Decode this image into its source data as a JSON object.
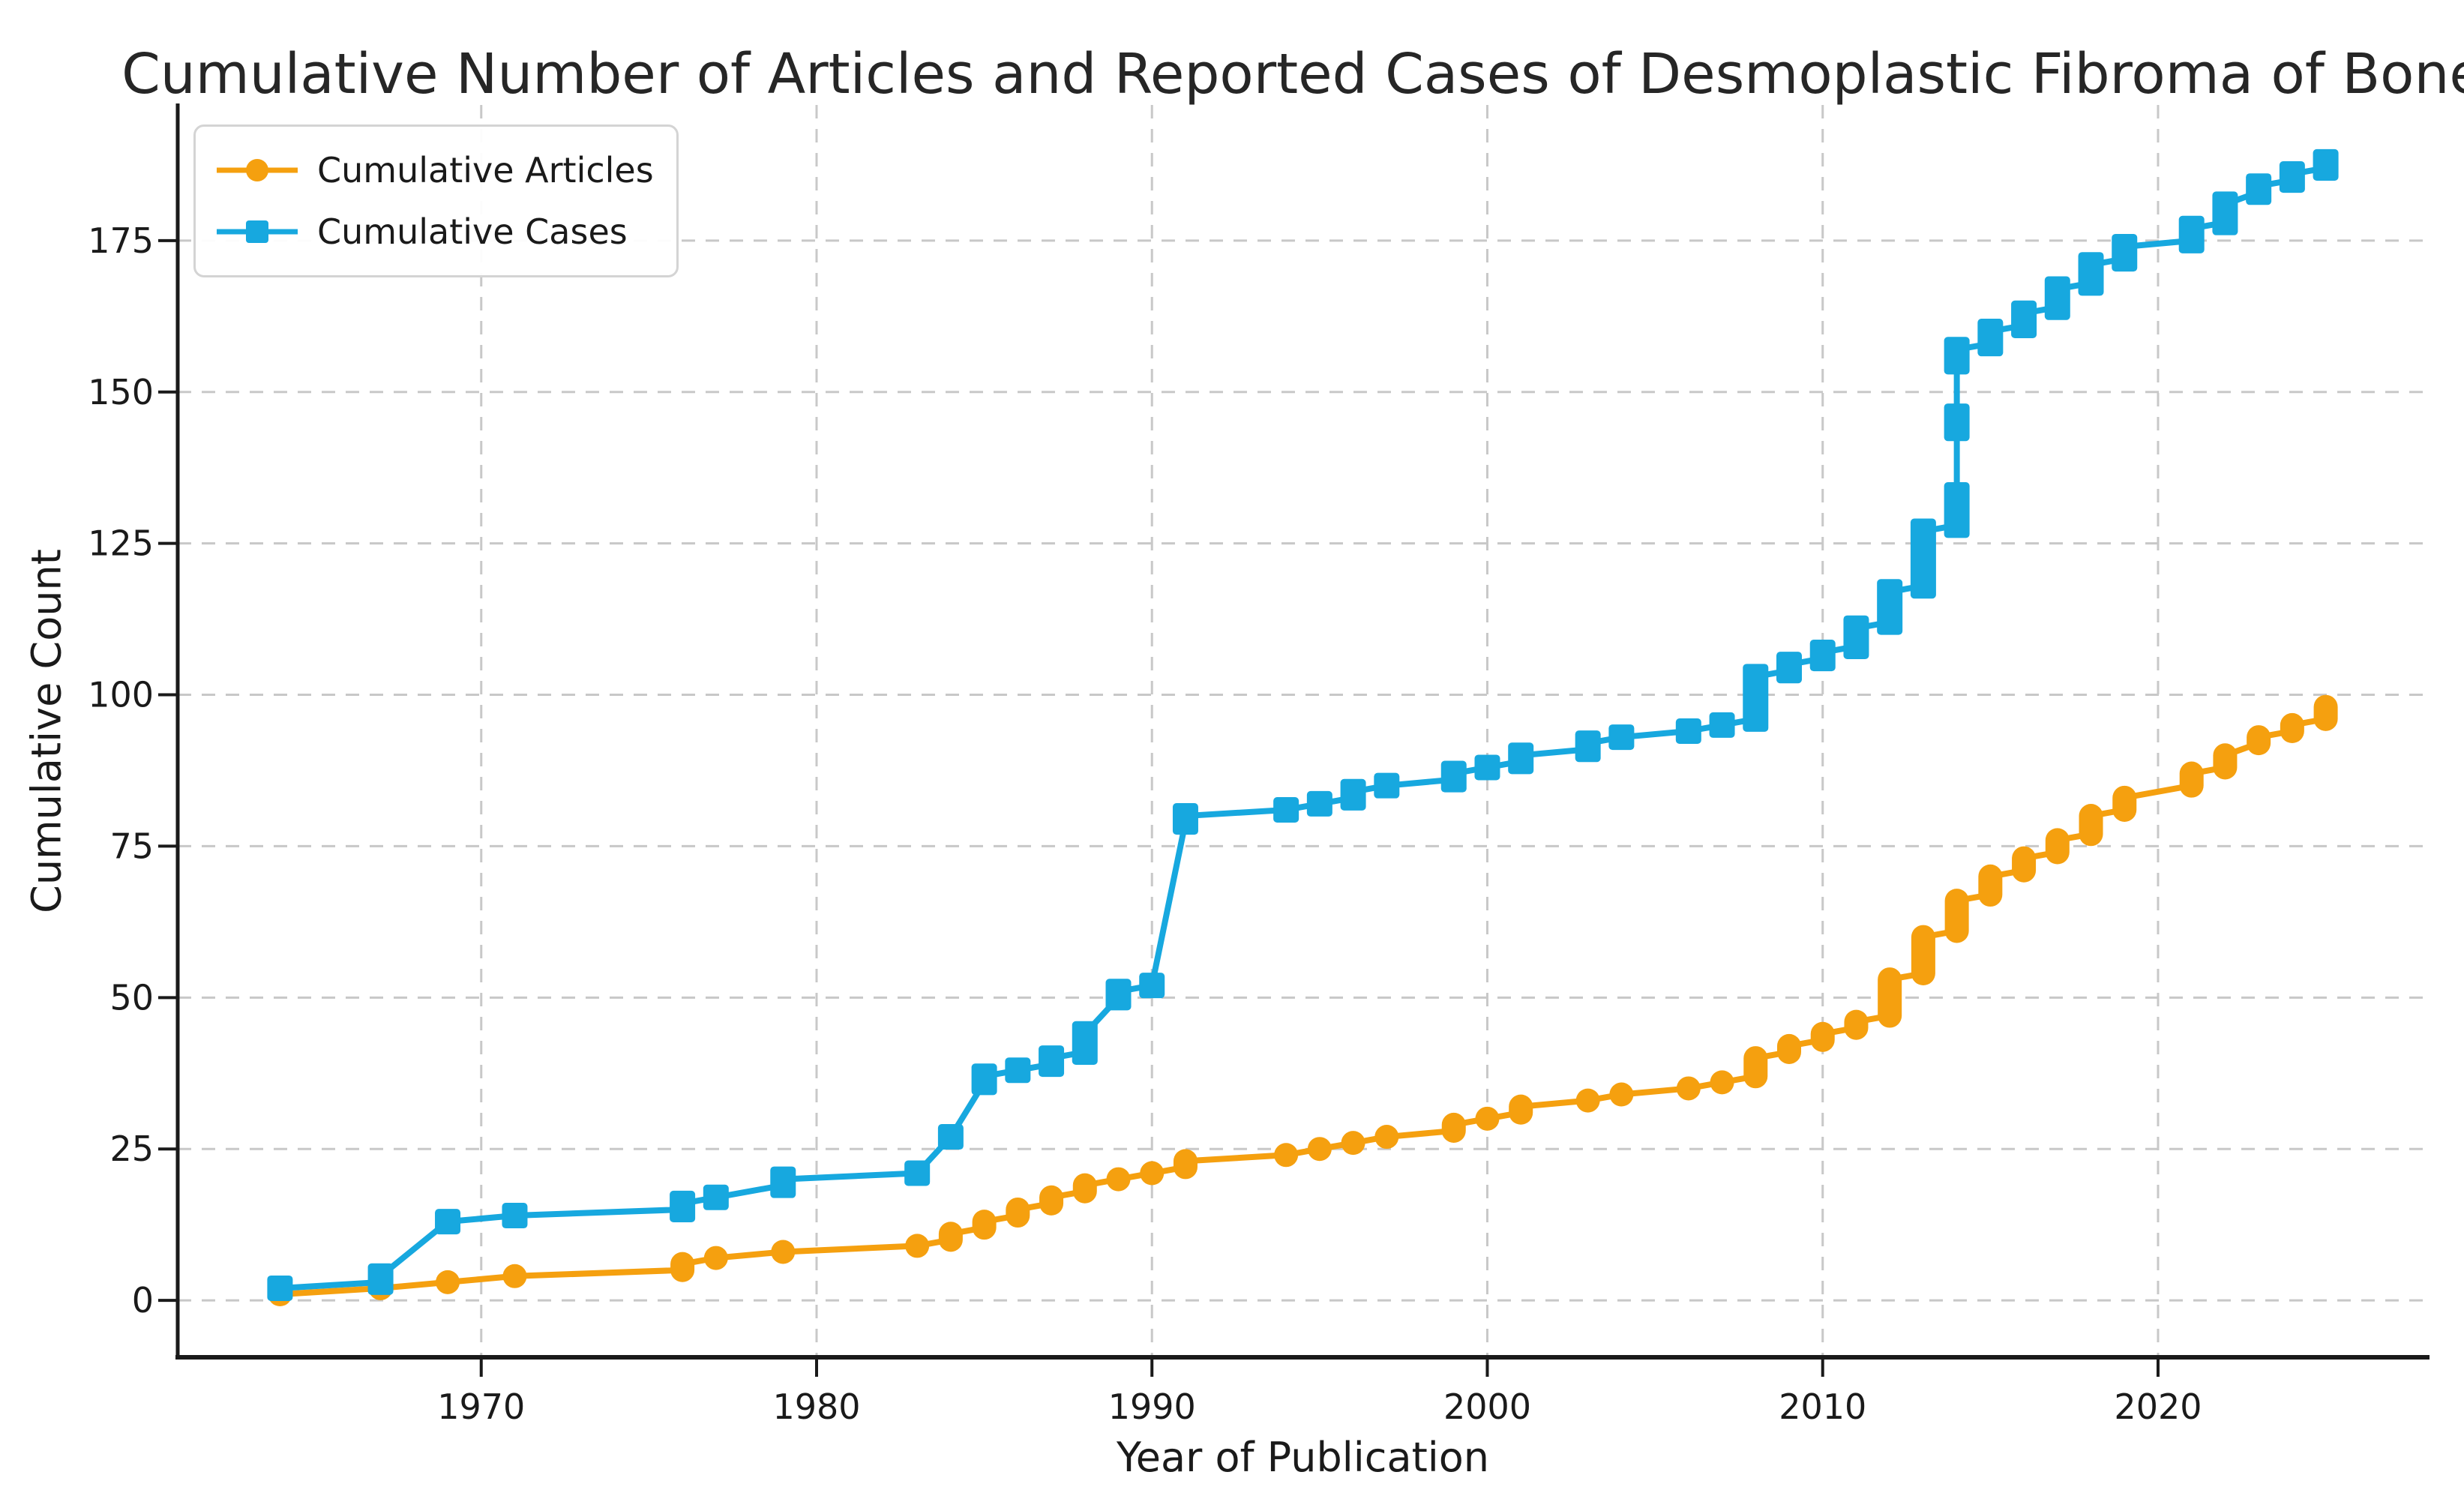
{
  "title": "Cumulative Number of Articles and Reported Cases of Desmoplastic Fibroma of Bone",
  "colors": {
    "articles": "#F5A00F",
    "cases": "#17A8DF",
    "grid": "#c8c8c8",
    "spine": "#1a1a1a",
    "text": "#1a1a1a",
    "background": "#ffffff",
    "legend_border": "#d4d4d4"
  },
  "chart_data": {
    "type": "line",
    "title": "Cumulative Number of Articles and Reported Cases of Desmoplastic Fibroma of Bone",
    "xlabel": "Year of Publication",
    "ylabel": "Cumulative Count",
    "grid": true,
    "grid_style": "dashed",
    "legend_position": "upper left",
    "x_ticks": [
      1970,
      1980,
      1990,
      2000,
      2010,
      2020
    ],
    "y_ticks": [
      0,
      25,
      50,
      75,
      100,
      125,
      150,
      175
    ],
    "xlim": [
      1960.95,
      2028.05
    ],
    "ylim": [
      -9.4,
      197.4
    ],
    "series": [
      {
        "name": "Cumulative Articles",
        "marker": "circle",
        "color_key": "articles",
        "points": [
          {
            "year": 1964,
            "value": 1
          },
          {
            "year": 1967,
            "value": 2
          },
          {
            "year": 1969,
            "value": 3
          },
          {
            "year": 1971,
            "value": 4
          },
          {
            "year": 1976,
            "value": 6,
            "spans": [
              [
                5,
                6
              ]
            ]
          },
          {
            "year": 1977,
            "value": 7
          },
          {
            "year": 1979,
            "value": 8
          },
          {
            "year": 1983,
            "value": 9
          },
          {
            "year": 1984,
            "value": 11,
            "spans": [
              [
                10,
                11
              ]
            ]
          },
          {
            "year": 1985,
            "value": 13,
            "spans": [
              [
                12,
                13
              ]
            ]
          },
          {
            "year": 1986,
            "value": 15,
            "spans": [
              [
                14,
                15
              ]
            ]
          },
          {
            "year": 1987,
            "value": 17,
            "spans": [
              [
                16,
                17
              ]
            ]
          },
          {
            "year": 1988,
            "value": 19,
            "spans": [
              [
                18,
                19
              ]
            ]
          },
          {
            "year": 1989,
            "value": 20
          },
          {
            "year": 1990,
            "value": 21
          },
          {
            "year": 1991,
            "value": 23,
            "spans": [
              [
                22,
                23
              ]
            ]
          },
          {
            "year": 1994,
            "value": 24
          },
          {
            "year": 1995,
            "value": 25
          },
          {
            "year": 1996,
            "value": 26
          },
          {
            "year": 1997,
            "value": 27
          },
          {
            "year": 1999,
            "value": 29,
            "spans": [
              [
                28,
                29
              ]
            ]
          },
          {
            "year": 2000,
            "value": 30
          },
          {
            "year": 2001,
            "value": 32,
            "spans": [
              [
                31,
                32
              ]
            ]
          },
          {
            "year": 2003,
            "value": 33
          },
          {
            "year": 2004,
            "value": 34
          },
          {
            "year": 2006,
            "value": 35
          },
          {
            "year": 2007,
            "value": 36
          },
          {
            "year": 2008,
            "value": 40,
            "spans": [
              [
                37,
                40
              ]
            ]
          },
          {
            "year": 2009,
            "value": 42,
            "spans": [
              [
                41,
                42
              ]
            ]
          },
          {
            "year": 2010,
            "value": 44,
            "spans": [
              [
                43,
                44
              ]
            ]
          },
          {
            "year": 2011,
            "value": 46,
            "spans": [
              [
                45,
                46
              ]
            ]
          },
          {
            "year": 2012,
            "value": 53,
            "spans": [
              [
                47,
                53
              ]
            ]
          },
          {
            "year": 2013,
            "value": 60,
            "spans": [
              [
                54,
                60
              ]
            ]
          },
          {
            "year": 2014,
            "value": 66,
            "spans": [
              [
                61,
                66
              ]
            ]
          },
          {
            "year": 2015,
            "value": 70,
            "spans": [
              [
                67,
                70
              ]
            ]
          },
          {
            "year": 2016,
            "value": 73,
            "spans": [
              [
                71,
                73
              ]
            ]
          },
          {
            "year": 2017,
            "value": 76,
            "spans": [
              [
                74,
                76
              ]
            ]
          },
          {
            "year": 2018,
            "value": 80,
            "spans": [
              [
                77,
                80
              ]
            ]
          },
          {
            "year": 2019,
            "value": 83,
            "spans": [
              [
                81,
                83
              ]
            ]
          },
          {
            "year": 2021,
            "value": 87,
            "spans": [
              [
                85,
                87
              ]
            ]
          },
          {
            "year": 2022,
            "value": 90,
            "spans": [
              [
                88,
                90
              ]
            ]
          },
          {
            "year": 2023,
            "value": 93,
            "spans": [
              [
                92,
                93
              ]
            ]
          },
          {
            "year": 2024,
            "value": 95,
            "spans": [
              [
                94,
                95
              ]
            ]
          },
          {
            "year": 2025,
            "value": 98,
            "spans": [
              [
                96,
                98
              ]
            ]
          }
        ]
      },
      {
        "name": "Cumulative Cases",
        "marker": "square",
        "color_key": "cases",
        "points": [
          {
            "year": 1964,
            "value": 2
          },
          {
            "year": 1967,
            "value": 4,
            "spans": [
              [
                3,
                4
              ]
            ]
          },
          {
            "year": 1969,
            "value": 13
          },
          {
            "year": 1971,
            "value": 14
          },
          {
            "year": 1976,
            "value": 16,
            "spans": [
              [
                15,
                16
              ]
            ]
          },
          {
            "year": 1977,
            "value": 17
          },
          {
            "year": 1979,
            "value": 20,
            "spans": [
              [
                19,
                20
              ]
            ]
          },
          {
            "year": 1983,
            "value": 21
          },
          {
            "year": 1984,
            "value": 27
          },
          {
            "year": 1985,
            "value": 37,
            "spans": [
              [
                36,
                37
              ]
            ]
          },
          {
            "year": 1986,
            "value": 38
          },
          {
            "year": 1987,
            "value": 40,
            "spans": [
              [
                39,
                40
              ]
            ]
          },
          {
            "year": 1988,
            "value": 44,
            "spans": [
              [
                41,
                44
              ]
            ]
          },
          {
            "year": 1989,
            "value": 51,
            "spans": [
              [
                50,
                51
              ]
            ]
          },
          {
            "year": 1990,
            "value": 52
          },
          {
            "year": 1991,
            "value": 80,
            "spans": [
              [
                79,
                80
              ]
            ]
          },
          {
            "year": 1994,
            "value": 81
          },
          {
            "year": 1995,
            "value": 82
          },
          {
            "year": 1996,
            "value": 84,
            "spans": [
              [
                83,
                84
              ]
            ]
          },
          {
            "year": 1997,
            "value": 85
          },
          {
            "year": 1999,
            "value": 87,
            "spans": [
              [
                86,
                87
              ]
            ]
          },
          {
            "year": 2000,
            "value": 88
          },
          {
            "year": 2001,
            "value": 90,
            "spans": [
              [
                89,
                90
              ]
            ]
          },
          {
            "year": 2003,
            "value": 92,
            "spans": [
              [
                91,
                92
              ]
            ]
          },
          {
            "year": 2004,
            "value": 93
          },
          {
            "year": 2006,
            "value": 94
          },
          {
            "year": 2007,
            "value": 95
          },
          {
            "year": 2008,
            "value": 103,
            "spans": [
              [
                96,
                103
              ]
            ]
          },
          {
            "year": 2009,
            "value": 105,
            "spans": [
              [
                104,
                105
              ]
            ]
          },
          {
            "year": 2010,
            "value": 107,
            "spans": [
              [
                106,
                107
              ]
            ]
          },
          {
            "year": 2011,
            "value": 111,
            "spans": [
              [
                108,
                111
              ]
            ]
          },
          {
            "year": 2012,
            "value": 117,
            "spans": [
              [
                112,
                117
              ]
            ]
          },
          {
            "year": 2013,
            "value": 127,
            "spans": [
              [
                118,
                127
              ]
            ]
          },
          {
            "year": 2014,
            "value": 157,
            "spans": [
              [
                128,
                133
              ],
              [
                144,
                146
              ],
              [
                155,
                157
              ]
            ]
          },
          {
            "year": 2015,
            "value": 160,
            "spans": [
              [
                158,
                160
              ]
            ]
          },
          {
            "year": 2016,
            "value": 163,
            "spans": [
              [
                161,
                163
              ]
            ]
          },
          {
            "year": 2017,
            "value": 167,
            "spans": [
              [
                164,
                167
              ]
            ]
          },
          {
            "year": 2018,
            "value": 171,
            "spans": [
              [
                168,
                171
              ]
            ]
          },
          {
            "year": 2019,
            "value": 174,
            "spans": [
              [
                172,
                174
              ]
            ]
          },
          {
            "year": 2021,
            "value": 177,
            "spans": [
              [
                175,
                177
              ]
            ]
          },
          {
            "year": 2022,
            "value": 181,
            "spans": [
              [
                178,
                181
              ]
            ]
          },
          {
            "year": 2023,
            "value": 184,
            "spans": [
              [
                183,
                184
              ]
            ]
          },
          {
            "year": 2024,
            "value": 186,
            "spans": [
              [
                185,
                186
              ]
            ]
          },
          {
            "year": 2025,
            "value": 188,
            "spans": [
              [
                187,
                188
              ]
            ]
          }
        ]
      }
    ]
  }
}
